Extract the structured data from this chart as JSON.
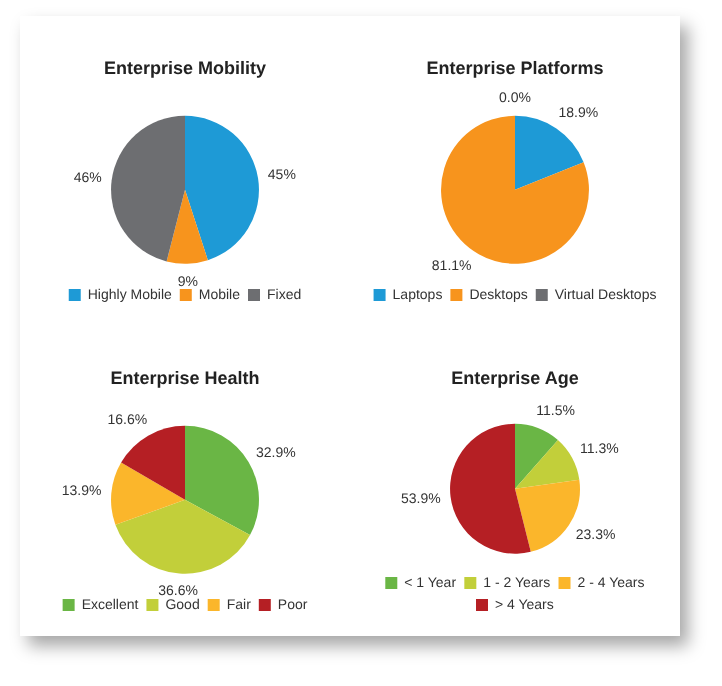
{
  "chart_data": [
    {
      "type": "pie",
      "title": "Enterprise Mobility",
      "categories": [
        "Highly Mobile",
        "Mobile",
        "Fixed"
      ],
      "values": [
        45,
        9,
        46
      ],
      "colors": [
        "#1e9ad6",
        "#f7941d",
        "#6d6e71"
      ],
      "value_labels": [
        "45%",
        "9%",
        "46%"
      ],
      "legend": "bottom"
    },
    {
      "type": "pie",
      "title": "Enterprise Platforms",
      "categories": [
        "Laptops",
        "Desktops",
        "Virtual Desktops"
      ],
      "values": [
        18.9,
        81.1,
        0.0
      ],
      "colors": [
        "#1e9ad6",
        "#f7941d",
        "#6d6e71"
      ],
      "value_labels": [
        "18.9%",
        "81.1%",
        "0.0%"
      ],
      "legend": "bottom"
    },
    {
      "type": "pie",
      "title": "Enterprise Health",
      "categories": [
        "Excellent",
        "Good",
        "Fair",
        "Poor"
      ],
      "values": [
        32.9,
        36.6,
        13.9,
        16.6
      ],
      "colors": [
        "#6ab645",
        "#c2cf3a",
        "#fbb62b",
        "#b51f24"
      ],
      "value_labels": [
        "32.9%",
        "36.6%",
        "13.9%",
        "16.6%"
      ],
      "legend": "bottom"
    },
    {
      "type": "pie",
      "title": "Enterprise Age",
      "categories": [
        "< 1 Year",
        "1 - 2 Years",
        "2 - 4 Years",
        "> 4 Years"
      ],
      "values": [
        11.5,
        11.3,
        23.3,
        53.9
      ],
      "colors": [
        "#6ab645",
        "#c2cf3a",
        "#fbb62b",
        "#b51f24"
      ],
      "value_labels": [
        "11.5%",
        "11.3%",
        "23.3%",
        "53.9%"
      ],
      "legend": "bottom"
    }
  ]
}
